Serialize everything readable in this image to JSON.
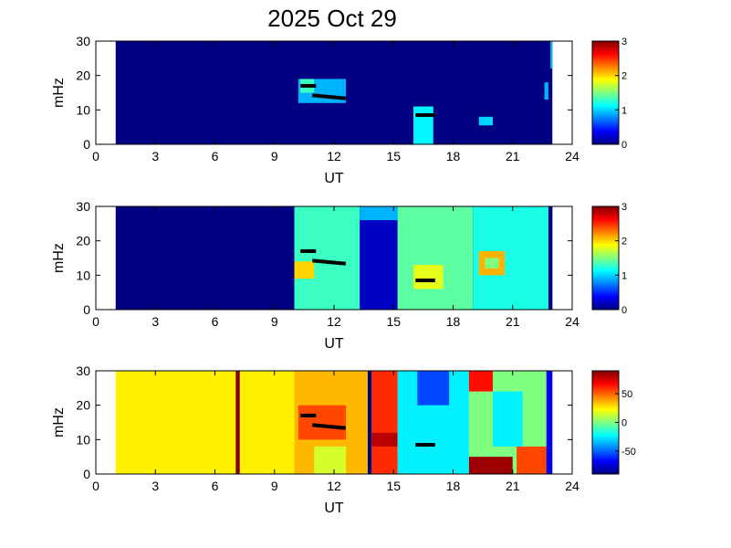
{
  "figure": {
    "title": "2025 Oct 29"
  },
  "chart_data": [
    {
      "type": "heatmap",
      "xlabel": "UT",
      "ylabel": "mHz",
      "xlim": [
        0,
        24
      ],
      "ylim": [
        0,
        30
      ],
      "xticks": [
        0,
        3,
        6,
        9,
        12,
        15,
        18,
        21,
        24
      ],
      "yticks": [
        0,
        10,
        20,
        30
      ],
      "colorbar": {
        "min": 0,
        "max": 3,
        "ticks": [
          0,
          1,
          2,
          3
        ]
      },
      "background_value": 0,
      "data_extent_ut": [
        1,
        23
      ],
      "regions": [
        {
          "x": [
            10.2,
            12.6
          ],
          "y": [
            12,
            19
          ],
          "value": 0.9
        },
        {
          "x": [
            10.3,
            11.0
          ],
          "y": [
            15,
            19
          ],
          "value": 1.3
        },
        {
          "x": [
            16.0,
            17.0
          ],
          "y": [
            0,
            11
          ],
          "value": 1.1
        },
        {
          "x": [
            19.3,
            20.0
          ],
          "y": [
            5.5,
            8
          ],
          "value": 1.0
        },
        {
          "x": [
            22.6,
            22.8
          ],
          "y": [
            13,
            18
          ],
          "value": 0.9
        },
        {
          "x": [
            22.9,
            23.0
          ],
          "y": [
            22,
            30
          ],
          "value": 0.9
        }
      ],
      "markers": [
        {
          "x": [
            10.4,
            11.0
          ],
          "y": [
            17,
            17
          ]
        },
        {
          "x": [
            11.0,
            12.5
          ],
          "y": [
            14.2,
            13.4
          ]
        },
        {
          "x": [
            16.2,
            17.0
          ],
          "y": [
            8.5,
            8.5
          ]
        }
      ]
    },
    {
      "type": "heatmap",
      "xlabel": "UT",
      "ylabel": "mHz",
      "xlim": [
        0,
        24
      ],
      "ylim": [
        0,
        30
      ],
      "xticks": [
        0,
        3,
        6,
        9,
        12,
        15,
        18,
        21,
        24
      ],
      "yticks": [
        0,
        10,
        20,
        30
      ],
      "colorbar": {
        "min": 0,
        "max": 3,
        "ticks": [
          0,
          1,
          2,
          3
        ]
      },
      "background_value": 0,
      "data_extent_ut": [
        1,
        23
      ],
      "regions": [
        {
          "x": [
            10.0,
            13.3
          ],
          "y": [
            0,
            30
          ],
          "value": 1.3
        },
        {
          "x": [
            13.3,
            15.2
          ],
          "y": [
            0,
            30
          ],
          "value": 0.2
        },
        {
          "x": [
            13.3,
            15.2
          ],
          "y": [
            26,
            30
          ],
          "value": 0.9
        },
        {
          "x": [
            15.2,
            19.0
          ],
          "y": [
            0,
            30
          ],
          "value": 1.4
        },
        {
          "x": [
            19.0,
            23.0
          ],
          "y": [
            0,
            30
          ],
          "value": 1.2
        },
        {
          "x": [
            10.0,
            11.0
          ],
          "y": [
            9,
            14
          ],
          "value": 2.0
        },
        {
          "x": [
            16.0,
            17.5
          ],
          "y": [
            6,
            13
          ],
          "value": 1.8
        },
        {
          "x": [
            19.3,
            20.6
          ],
          "y": [
            10,
            17
          ],
          "value": 2.1
        },
        {
          "x": [
            19.6,
            20.3
          ],
          "y": [
            12,
            15
          ],
          "value": 1.5
        },
        {
          "x": [
            22.8,
            23.0
          ],
          "y": [
            0,
            30
          ],
          "value": 0.0
        }
      ],
      "markers": [
        {
          "x": [
            10.4,
            11.0
          ],
          "y": [
            17,
            17
          ]
        },
        {
          "x": [
            11.0,
            12.5
          ],
          "y": [
            14.2,
            13.4
          ]
        },
        {
          "x": [
            16.2,
            17.0
          ],
          "y": [
            8.5,
            8.5
          ]
        }
      ]
    },
    {
      "type": "heatmap",
      "xlabel": "UT",
      "ylabel": "mHz",
      "xlim": [
        0,
        24
      ],
      "ylim": [
        0,
        30
      ],
      "xticks": [
        0,
        3,
        6,
        9,
        12,
        15,
        18,
        21,
        24
      ],
      "yticks": [
        0,
        10,
        20,
        30
      ],
      "colorbar": {
        "min": -90,
        "max": 90,
        "ticks": [
          50,
          0,
          -50
        ]
      },
      "background_value": 25,
      "data_extent_ut": [
        1,
        23
      ],
      "regions": [
        {
          "x": [
            7.05,
            7.25
          ],
          "y": [
            0,
            30
          ],
          "value": 90
        },
        {
          "x": [
            10.0,
            13.7
          ],
          "y": [
            0,
            30
          ],
          "value": 35
        },
        {
          "x": [
            10.2,
            12.6
          ],
          "y": [
            10,
            20
          ],
          "value": 55
        },
        {
          "x": [
            11.0,
            12.6
          ],
          "y": [
            0,
            8
          ],
          "value": 15
        },
        {
          "x": [
            13.7,
            13.9
          ],
          "y": [
            0,
            30
          ],
          "value": -90
        },
        {
          "x": [
            13.9,
            15.2
          ],
          "y": [
            0,
            30
          ],
          "value": 60
        },
        {
          "x": [
            13.9,
            15.2
          ],
          "y": [
            8,
            12
          ],
          "value": 80
        },
        {
          "x": [
            15.2,
            18.8
          ],
          "y": [
            0,
            30
          ],
          "value": -25
        },
        {
          "x": [
            16.2,
            17.8
          ],
          "y": [
            20,
            30
          ],
          "value": -55
        },
        {
          "x": [
            18.8,
            23.0
          ],
          "y": [
            0,
            30
          ],
          "value": 0
        },
        {
          "x": [
            18.8,
            21.0
          ],
          "y": [
            0,
            5
          ],
          "value": 85
        },
        {
          "x": [
            18.8,
            20.0
          ],
          "y": [
            24,
            30
          ],
          "value": 65
        },
        {
          "x": [
            21.2,
            22.8
          ],
          "y": [
            0,
            8
          ],
          "value": 55
        },
        {
          "x": [
            20.0,
            21.5
          ],
          "y": [
            8,
            24
          ],
          "value": -25
        },
        {
          "x": [
            22.7,
            23.0
          ],
          "y": [
            0,
            30
          ],
          "value": -70
        }
      ],
      "markers": [
        {
          "x": [
            10.4,
            11.0
          ],
          "y": [
            17,
            17
          ]
        },
        {
          "x": [
            11.0,
            12.5
          ],
          "y": [
            14.2,
            13.4
          ]
        },
        {
          "x": [
            16.2,
            17.0
          ],
          "y": [
            8.5,
            8.5
          ]
        }
      ]
    }
  ]
}
